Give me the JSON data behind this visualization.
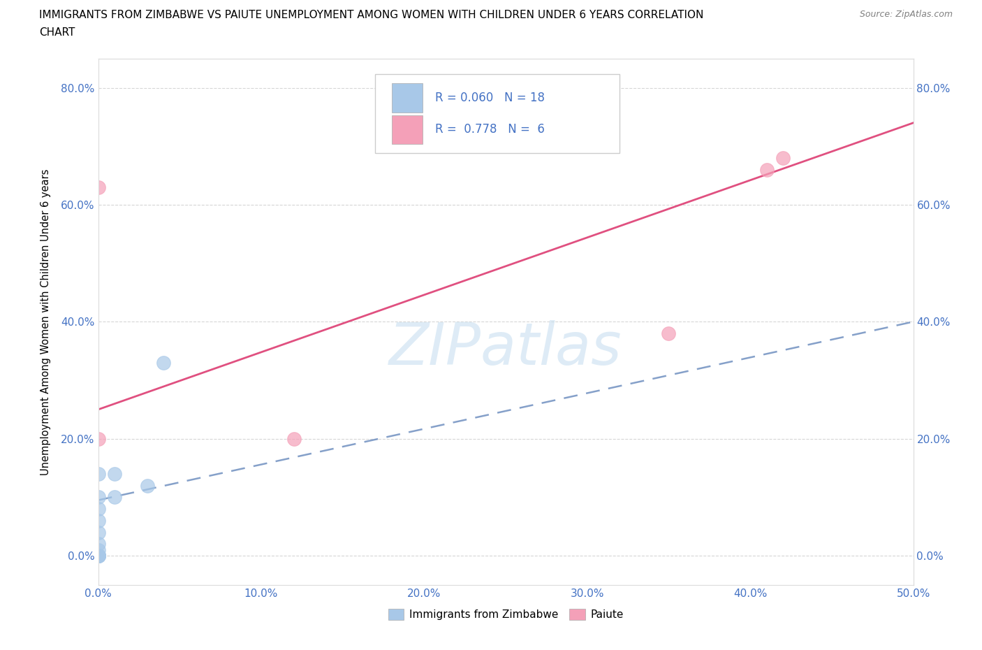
{
  "title_line1": "IMMIGRANTS FROM ZIMBABWE VS PAIUTE UNEMPLOYMENT AMONG WOMEN WITH CHILDREN UNDER 6 YEARS CORRELATION",
  "title_line2": "CHART",
  "source": "Source: ZipAtlas.com",
  "xlim": [
    0.0,
    0.5
  ],
  "ylim": [
    -0.05,
    0.85
  ],
  "blue_color": "#a8c8e8",
  "pink_color": "#f4a0b8",
  "blue_line_color": "#7090c0",
  "pink_line_color": "#e05080",
  "r_blue": 0.06,
  "n_blue": 18,
  "r_pink": 0.778,
  "n_pink": 6,
  "legend_label_blue": "Immigrants from Zimbabwe",
  "legend_label_pink": "Paiute",
  "watermark": "ZIPatlas",
  "blue_scatter_x": [
    0.0,
    0.0,
    0.0,
    0.0,
    0.0,
    0.0,
    0.0,
    0.0,
    0.0,
    0.0,
    0.0,
    0.0,
    0.0,
    0.0,
    0.01,
    0.01,
    0.03,
    0.04
  ],
  "blue_scatter_y": [
    0.0,
    0.0,
    0.0,
    0.0,
    0.0,
    0.0,
    0.0,
    0.01,
    0.02,
    0.04,
    0.06,
    0.08,
    0.1,
    0.14,
    0.1,
    0.14,
    0.12,
    0.33
  ],
  "pink_scatter_x": [
    0.0,
    0.0,
    0.12,
    0.35,
    0.41,
    0.42
  ],
  "pink_scatter_y": [
    0.2,
    0.63,
    0.2,
    0.38,
    0.66,
    0.68
  ],
  "blue_line_x": [
    0.0,
    0.5
  ],
  "blue_line_y": [
    0.095,
    0.4
  ],
  "pink_line_x": [
    0.0,
    0.5
  ],
  "pink_line_y": [
    0.25,
    0.74
  ],
  "x_tick_vals": [
    0.0,
    0.1,
    0.2,
    0.3,
    0.4,
    0.5
  ],
  "y_tick_vals": [
    0.0,
    0.2,
    0.4,
    0.6,
    0.8
  ],
  "tick_color": "#4472c4",
  "grid_color": "#cccccc",
  "ylabel": "Unemployment Among Women with Children Under 6 years"
}
